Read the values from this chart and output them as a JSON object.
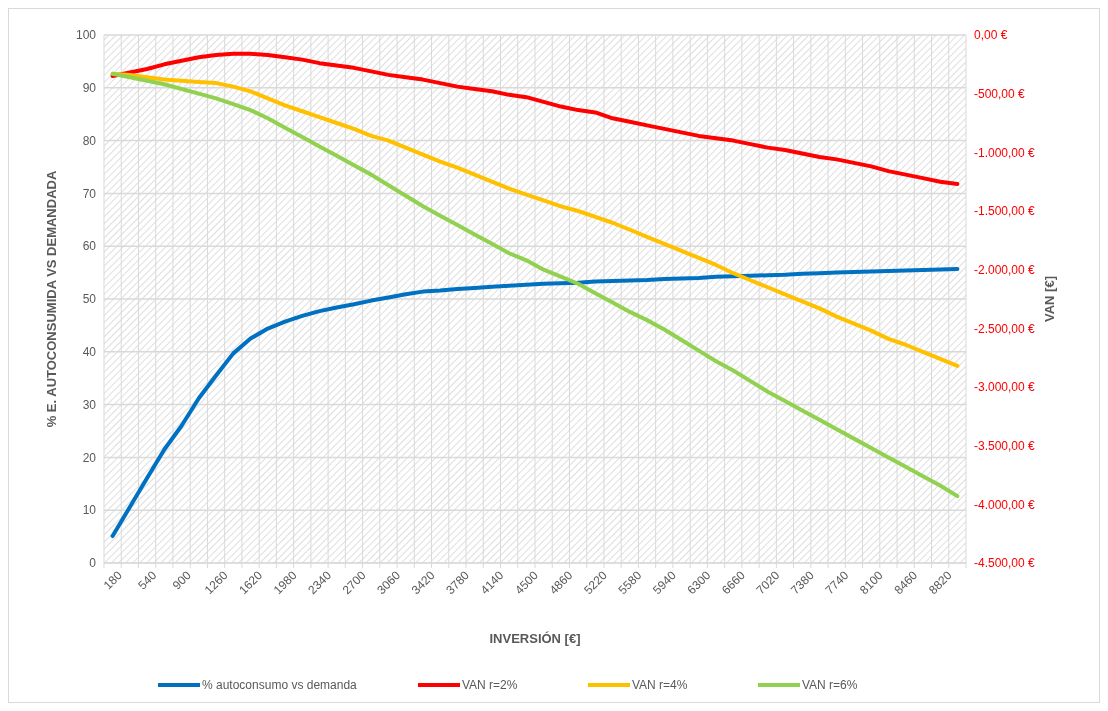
{
  "chart_data": {
    "type": "line",
    "xlabel": "INVERSIÓN [€]",
    "ylabel": "% E. AUTOCONSUMIDA VS DEMANDADA",
    "y2label": "VAN [€]",
    "categories": [
      "180",
      null,
      "540",
      null,
      "900",
      null,
      "1260",
      null,
      "1620",
      null,
      "1980",
      null,
      "2340",
      null,
      "2700",
      null,
      "3060",
      null,
      "3420",
      null,
      "3780",
      null,
      "4140",
      null,
      "4500",
      null,
      "4860",
      null,
      "5220",
      null,
      "5580",
      null,
      "5940",
      null,
      "6300",
      null,
      "6660",
      null,
      "7020",
      null,
      "7380",
      null,
      "7740",
      null,
      "8100",
      null,
      "8460",
      null,
      "8820",
      null
    ],
    "ylim": [
      0,
      100
    ],
    "yticks": [
      0,
      10,
      20,
      30,
      40,
      50,
      60,
      70,
      80,
      90,
      100
    ],
    "y2lim": [
      -4500,
      0
    ],
    "y2ticks": [
      {
        "value": 0,
        "label": "0,00 €"
      },
      {
        "value": -500,
        "label": "-500,00 €"
      },
      {
        "value": -1000,
        "label": "-1.000,00 €"
      },
      {
        "value": -1500,
        "label": "-1.500,00 €"
      },
      {
        "value": -2000,
        "label": "-2.000,00 €"
      },
      {
        "value": -2500,
        "label": "-2.500,00 €"
      },
      {
        "value": -3000,
        "label": "-3.000,00 €"
      },
      {
        "value": -3500,
        "label": "-3.500,00 €"
      },
      {
        "value": -4000,
        "label": "-4.000,00 €"
      },
      {
        "value": -4500,
        "label": "-4.500,00 €"
      }
    ],
    "grid": true,
    "legend": "bottom",
    "marker": "none",
    "line_style": "solid",
    "series": [
      {
        "name": "% autoconsumo vs demanda",
        "color": "#0070c0",
        "values": [
          5.1,
          10.6,
          16.1,
          21.5,
          26.0,
          31.2,
          35.5,
          39.7,
          42.5,
          44.4,
          45.7,
          46.8,
          47.7,
          48.4,
          49.0,
          49.7,
          50.3,
          50.9,
          51.4,
          51.6,
          51.9,
          52.1,
          52.3,
          52.5,
          52.7,
          52.9,
          53.0,
          53.1,
          53.3,
          53.4,
          53.5,
          53.6,
          53.8,
          53.9,
          54.0,
          54.2,
          54.3,
          54.4,
          54.5,
          54.6,
          54.8,
          54.9,
          55.0,
          55.1,
          55.2,
          55.3,
          55.4,
          55.5,
          55.6,
          55.7
        ]
      },
      {
        "name": "VAN r=2%",
        "color": "#ff0000",
        "axis": "y2",
        "values": [
          -350,
          -320,
          -290,
          -250,
          -220,
          -190,
          -170,
          -160,
          -160,
          -170,
          -190,
          -210,
          -240,
          -260,
          -280,
          -310,
          -340,
          -360,
          -380,
          -410,
          -440,
          -460,
          -480,
          -510,
          -530,
          -570,
          -610,
          -640,
          -660,
          -710,
          -740,
          -770,
          -800,
          -830,
          -860,
          -880,
          -900,
          -930,
          -960,
          -980,
          -1010,
          -1040,
          -1060,
          -1090,
          -1120,
          -1160,
          -1190,
          -1220,
          -1250,
          -1270
        ]
      },
      {
        "name": "VAN r=4%",
        "color": "#ffc000",
        "axis": "y2",
        "values": [
          -330,
          -340,
          -360,
          -380,
          -390,
          -400,
          -410,
          -440,
          -480,
          -540,
          -600,
          -650,
          -700,
          -750,
          -800,
          -860,
          -900,
          -960,
          -1020,
          -1080,
          -1130,
          -1190,
          -1250,
          -1310,
          -1360,
          -1410,
          -1460,
          -1500,
          -1550,
          -1600,
          -1660,
          -1720,
          -1780,
          -1840,
          -1900,
          -1960,
          -2030,
          -2090,
          -2150,
          -2210,
          -2270,
          -2330,
          -2400,
          -2460,
          -2520,
          -2590,
          -2640,
          -2700,
          -2760,
          -2820
        ]
      },
      {
        "name": "VAN r=6%",
        "color": "#92d050",
        "axis": "y2",
        "values": [
          -330,
          -360,
          -390,
          -420,
          -460,
          -500,
          -540,
          -590,
          -640,
          -710,
          -790,
          -870,
          -950,
          -1030,
          -1110,
          -1190,
          -1280,
          -1370,
          -1460,
          -1540,
          -1620,
          -1700,
          -1780,
          -1860,
          -1920,
          -2000,
          -2060,
          -2120,
          -2200,
          -2280,
          -2360,
          -2430,
          -2510,
          -2600,
          -2690,
          -2780,
          -2860,
          -2950,
          -3040,
          -3120,
          -3200,
          -3280,
          -3360,
          -3440,
          -3520,
          -3600,
          -3680,
          -3760,
          -3840,
          -3930
        ]
      }
    ]
  }
}
